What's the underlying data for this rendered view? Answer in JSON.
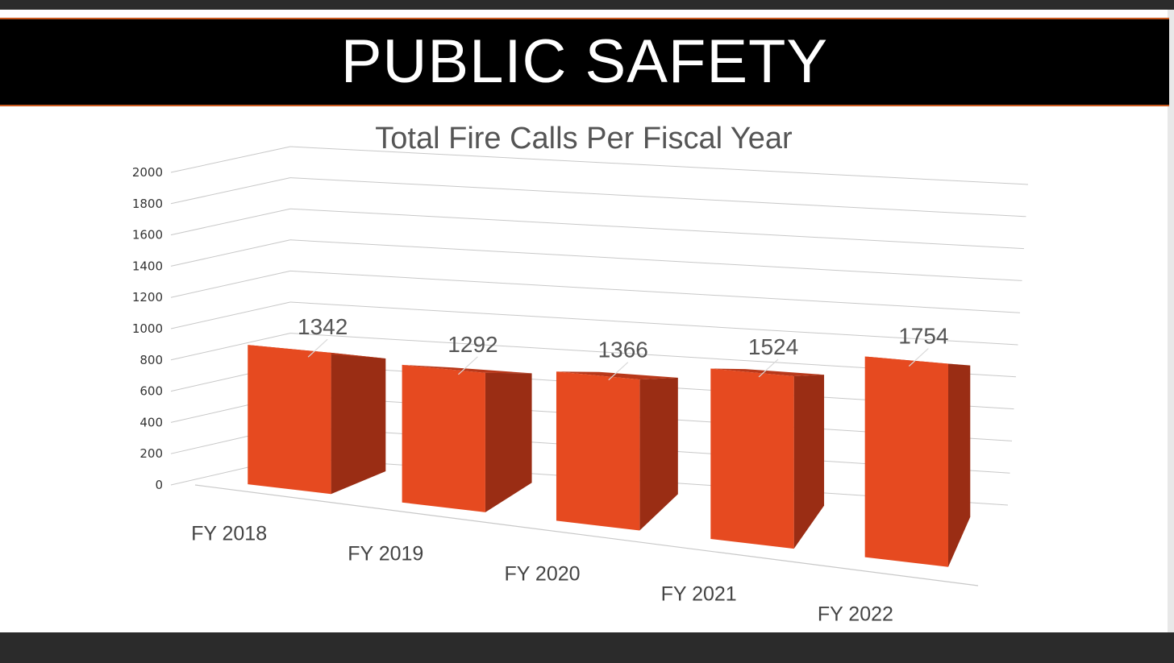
{
  "slide": {
    "title": "PUBLIC SAFETY"
  },
  "colors": {
    "bar_front": "#e64a20",
    "bar_side": "#9a2d14",
    "bar_top": "#b8381a",
    "title_bar": "#000000",
    "accent_line": "#c8581e",
    "gridline": "#c8c8c8"
  },
  "chart_data": {
    "type": "bar",
    "style": "3d-column",
    "title": "Total Fire Calls Per Fiscal Year",
    "xlabel": "",
    "ylabel": "",
    "categories": [
      "FY 2018",
      "FY 2019",
      "FY 2020",
      "FY 2021",
      "FY 2022"
    ],
    "values": [
      1342,
      1292,
      1366,
      1524,
      1754
    ],
    "ylim": [
      0,
      2000
    ],
    "yticks": [
      0,
      200,
      400,
      600,
      800,
      1000,
      1200,
      1400,
      1600,
      1800,
      2000
    ],
    "grid": true,
    "legend": "none",
    "data_labels": true
  }
}
